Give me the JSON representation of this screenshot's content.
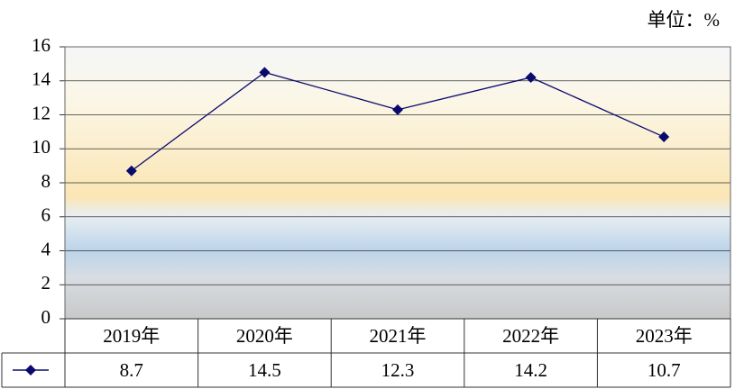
{
  "chart_data": {
    "type": "line",
    "unit_label": "单位：%",
    "categories": [
      "2019年",
      "2020年",
      "2021年",
      "2022年",
      "2023年"
    ],
    "series": [
      {
        "color": "#0a0a6e",
        "values": [
          8.7,
          14.5,
          12.3,
          14.2,
          10.7
        ]
      }
    ],
    "ylim": [
      0,
      16
    ],
    "yticks": [
      0,
      2,
      4,
      6,
      8,
      10,
      12,
      14,
      16
    ],
    "grid": true,
    "data_table": true
  }
}
